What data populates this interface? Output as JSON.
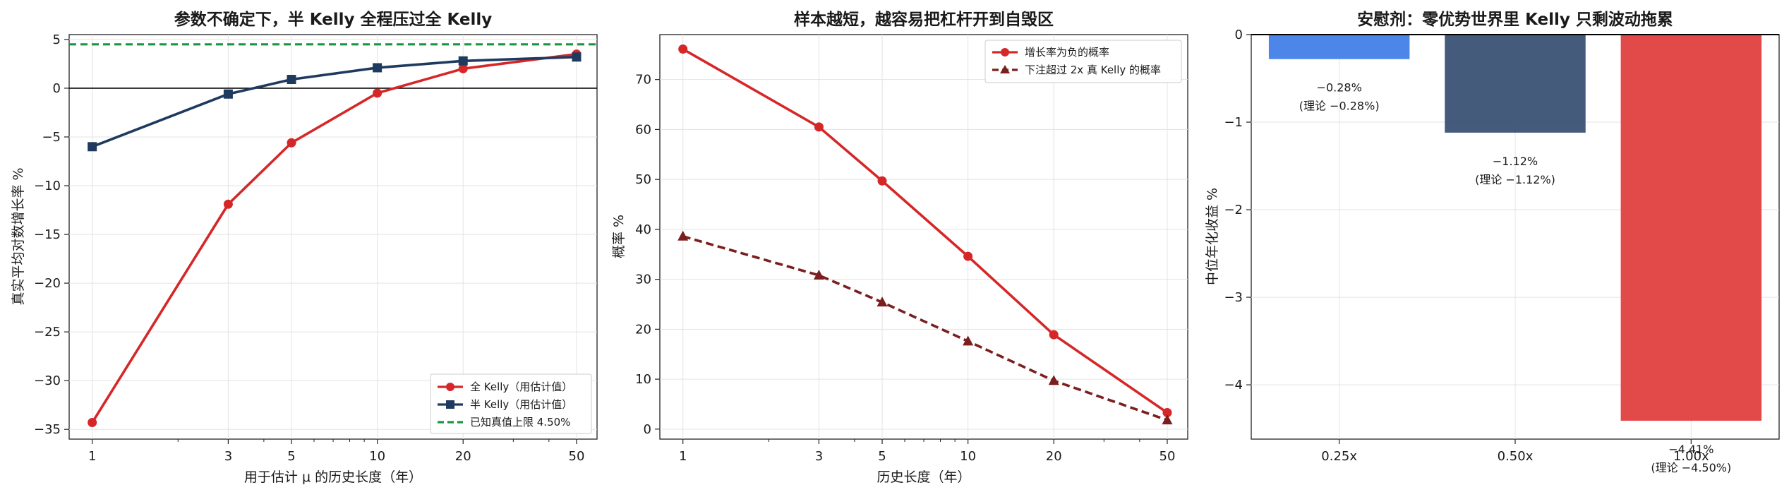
{
  "colors": {
    "full_kelly": "#d62728",
    "half_kelly": "#1f3a5f",
    "true_ceiling": "#1a9641",
    "prob_negative": "#d62728",
    "prob_overbet": "#7b1e1e",
    "bar_025": "#4380e8",
    "bar_050": "#3a5275",
    "bar_100": "#e0403f"
  },
  "chart_data": [
    {
      "type": "line",
      "title": "参数不确定下，半 Kelly 全程压过全 Kelly",
      "xlabel": "用于估计 μ 的历史长度（年）",
      "ylabel": "真实平均对数增长率 %",
      "xscale": "log",
      "x": [
        1,
        3,
        5,
        10,
        20,
        50
      ],
      "xticks": [
        "1",
        "3",
        "5",
        "10",
        "20",
        "50"
      ],
      "ylim": [
        -36,
        5.5
      ],
      "yticks": [
        5,
        0,
        -5,
        -10,
        -15,
        -20,
        -25,
        -30,
        -35
      ],
      "ytick_labels": [
        "5",
        "0",
        "−5",
        "−10",
        "−15",
        "−20",
        "−25",
        "−30",
        "−35"
      ],
      "grid": true,
      "legend_position": "lower-right",
      "series": [
        {
          "name": "全 Kelly（用估计值）",
          "values": [
            -34.3,
            -11.9,
            -5.6,
            -0.5,
            2.0,
            3.5
          ],
          "marker": "circle",
          "color_key": "full_kelly"
        },
        {
          "name": "半 Kelly（用估计值）",
          "values": [
            -6.0,
            -0.6,
            0.9,
            2.1,
            2.8,
            3.2
          ],
          "marker": "square",
          "color_key": "half_kelly"
        }
      ],
      "reference_lines": [
        {
          "name": "已知真值上限 4.50%",
          "y": 4.5,
          "style": "dashed",
          "color_key": "true_ceiling"
        },
        {
          "y": 0,
          "style": "solid",
          "color": "#000000"
        }
      ]
    },
    {
      "type": "line",
      "title": "样本越短，越容易把杠杆开到自毁区",
      "xlabel": "历史长度（年）",
      "ylabel": "概率 %",
      "xscale": "log",
      "x": [
        1,
        3,
        5,
        10,
        20,
        50
      ],
      "xticks": [
        "1",
        "3",
        "5",
        "10",
        "20",
        "50"
      ],
      "ylim": [
        -2,
        79
      ],
      "yticks": [
        0,
        10,
        20,
        30,
        40,
        50,
        60,
        70
      ],
      "ytick_labels": [
        "0",
        "10",
        "20",
        "30",
        "40",
        "50",
        "60",
        "70"
      ],
      "grid": true,
      "legend_position": "top-right",
      "series": [
        {
          "name": "增长率为负的概率",
          "values": [
            76.1,
            60.5,
            49.7,
            34.6,
            18.9,
            3.3
          ],
          "marker": "circle",
          "style": "solid",
          "color_key": "prob_negative"
        },
        {
          "name": "下注超过 2x 真 Kelly 的概率",
          "values": [
            38.6,
            30.8,
            25.4,
            17.6,
            9.7,
            1.8
          ],
          "marker": "triangle",
          "style": "dashed",
          "color_key": "prob_overbet"
        }
      ]
    },
    {
      "type": "bar",
      "title": "安慰剂：零优势世界里 Kelly 只剩波动拖累",
      "xlabel": "",
      "ylabel": "中位年化收益 %",
      "categories": [
        "0.25x",
        "0.50x",
        "1.00x"
      ],
      "values": [
        -0.28,
        -1.12,
        -4.41
      ],
      "theory": [
        -0.28,
        -1.12,
        -4.5
      ],
      "value_labels": [
        "−0.28%",
        "−1.12%",
        "−4.41%"
      ],
      "theory_labels": [
        "(理论 −0.28%)",
        "(理论 −1.12%)",
        "(理论 −4.50%)"
      ],
      "color_keys": [
        "bar_025",
        "bar_050",
        "bar_100"
      ],
      "ylim": [
        -4.62,
        0
      ],
      "yticks": [
        0,
        -1,
        -2,
        -3,
        -4
      ],
      "ytick_labels": [
        "0",
        "−1",
        "−2",
        "−3",
        "−4"
      ],
      "grid": true
    }
  ]
}
